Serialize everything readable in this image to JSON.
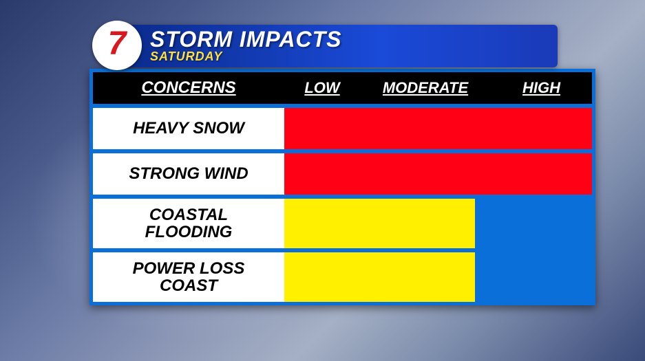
{
  "logo": {
    "text": "7",
    "text_color": "#d8181f",
    "bg": "#ffffff"
  },
  "title": {
    "main": "STORM IMPACTS",
    "sub": "SATURDAY",
    "main_color": "#ffffff",
    "sub_color": "#ffe040",
    "stripe_gradient": [
      "#0a2a8a",
      "#1a4ad8"
    ]
  },
  "table": {
    "type": "table",
    "border_color": "#0a6fd8",
    "header_bg": "#000000",
    "header_text_color": "#ffffff",
    "concern_cell_bg": "#ffffff",
    "concern_text_color": "#000000",
    "columns": {
      "concerns": "CONCERNS",
      "levels": [
        "LOW",
        "MODERATE",
        "HIGH"
      ]
    },
    "level_colors": {
      "moderate": "#fff000",
      "high": "#ff0015"
    },
    "rows": [
      {
        "label": "HEAVY SNOW",
        "level": "high",
        "color": "#ff0015",
        "fraction": 1.0
      },
      {
        "label": "STRONG WIND",
        "level": "high",
        "color": "#ff0015",
        "fraction": 1.0
      },
      {
        "label": "COASTAL\nFLOODING",
        "level": "moderate",
        "color": "#fff000",
        "fraction": 0.62
      },
      {
        "label": "POWER LOSS\nCOAST",
        "level": "moderate",
        "color": "#fff000",
        "fraction": 0.62
      }
    ]
  },
  "background": {
    "gradient": [
      "#2a3a6a",
      "#4a5a8a",
      "#6a7aa5",
      "#8a95b5",
      "#a5b0c5",
      "#7a8aaa",
      "#3a4a7a"
    ]
  }
}
